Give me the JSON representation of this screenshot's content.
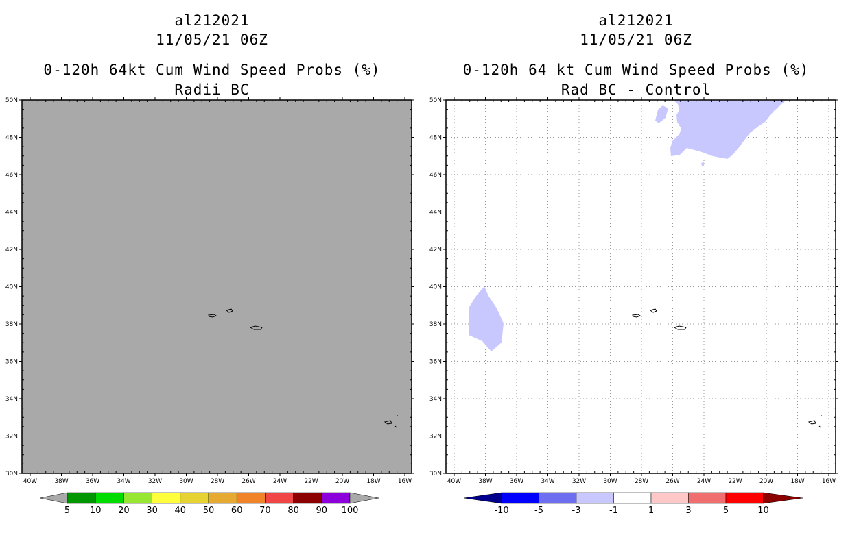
{
  "left_panel": {
    "storm_id": "al212021",
    "datetime": "11/05/21 06Z",
    "product": "0-120h 64kt Cum Wind Speed Probs (%)",
    "subtitle": "Radii BC",
    "background_color": "#a9a9a9",
    "colorbar": {
      "colors": [
        "#009600",
        "#00dc00",
        "#96e632",
        "#ffff3c",
        "#e6d232",
        "#e6aa32",
        "#f08228",
        "#f04646",
        "#8c0000",
        "#8c00dc"
      ],
      "labels": [
        "5",
        "10",
        "20",
        "30",
        "40",
        "50",
        "60",
        "70",
        "80",
        "90",
        "100"
      ]
    }
  },
  "right_panel": {
    "storm_id": "al212021",
    "datetime": "11/05/21 06Z",
    "product": "0-120h 64 kt Cum Wind Speed Probs (%)",
    "subtitle": "Rad BC - Control",
    "shading_color": "#c8c8ff",
    "colorbar": {
      "colors": [
        "#0000ff",
        "#6e6ef0",
        "#c8c8ff",
        "#ffffff",
        "#ffc8c8",
        "#f06e6e",
        "#ff0000"
      ],
      "end_left_color": "#00008c",
      "end_right_color": "#8c0000",
      "labels": [
        "-10",
        "-5",
        "-3",
        "-1",
        "1",
        "3",
        "5",
        "10"
      ]
    }
  },
  "axes": {
    "lat_labels": [
      "50N",
      "48N",
      "46N",
      "44N",
      "42N",
      "40N",
      "38N",
      "36N",
      "34N",
      "32N",
      "30N"
    ],
    "lon_labels": [
      "40W",
      "38W",
      "36W",
      "34W",
      "32W",
      "30W",
      "28W",
      "26W",
      "24W",
      "22W",
      "20W",
      "18W",
      "16W"
    ]
  }
}
